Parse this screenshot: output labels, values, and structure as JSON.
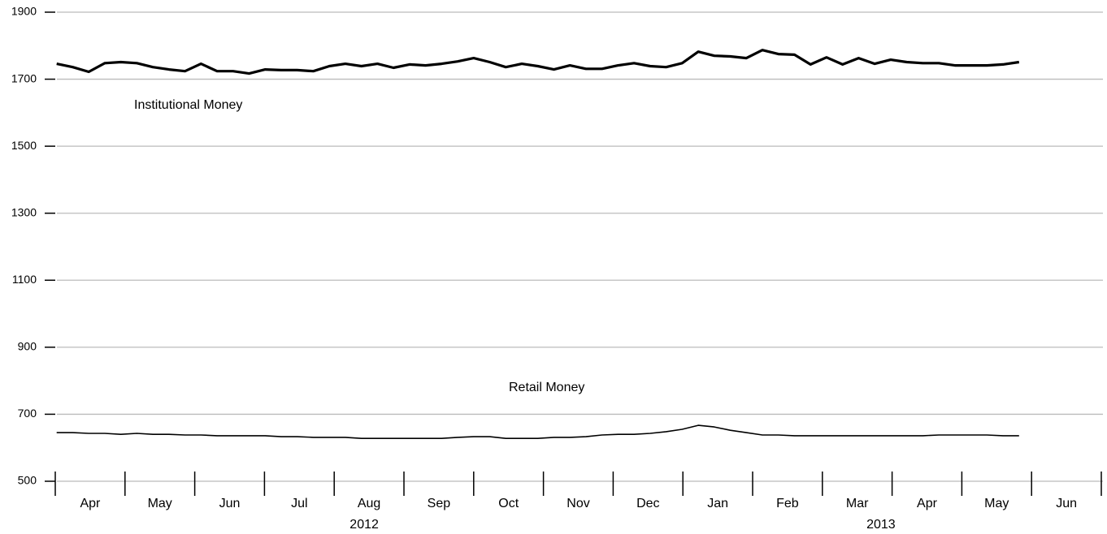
{
  "chart_data": {
    "type": "line",
    "annotations": [
      "Institutional Money",
      "Retail Money"
    ],
    "x": [
      0.02,
      0.25,
      0.48,
      0.71,
      0.94,
      1.17,
      1.4,
      1.63,
      1.86,
      2.09,
      2.32,
      2.55,
      2.78,
      3.01,
      3.24,
      3.47,
      3.7,
      3.93,
      4.16,
      4.39,
      4.62,
      4.85,
      5.08,
      5.31,
      5.54,
      5.77,
      6.0,
      6.23,
      6.46,
      6.69,
      6.92,
      7.15,
      7.38,
      7.61,
      7.84,
      8.07,
      8.3,
      8.53,
      8.76,
      8.99,
      9.22,
      9.45,
      9.68,
      9.91,
      10.14,
      10.37,
      10.6,
      10.83,
      11.06,
      11.29,
      11.52,
      11.75,
      11.98,
      12.21,
      12.44,
      12.67,
      12.9,
      13.13,
      13.36,
      13.59,
      13.82
    ],
    "series": [
      {
        "name": "Institutional Money",
        "color": "#000000",
        "width": 3.2,
        "values": [
          1746,
          1736,
          1722,
          1748,
          1751,
          1748,
          1736,
          1729,
          1724,
          1746,
          1724,
          1724,
          1717,
          1729,
          1727,
          1727,
          1724,
          1739,
          1746,
          1739,
          1746,
          1734,
          1744,
          1741,
          1746,
          1753,
          1763,
          1751,
          1736,
          1746,
          1739,
          1729,
          1741,
          1731,
          1731,
          1741,
          1748,
          1739,
          1736,
          1748,
          1782,
          1770,
          1768,
          1763,
          1787,
          1775,
          1773,
          1744,
          1765,
          1744,
          1763,
          1746,
          1758,
          1751,
          1748,
          1748,
          1741,
          1741,
          1741,
          1744,
          1751
        ]
      },
      {
        "name": "Retail Money",
        "color": "#000000",
        "width": 1.6,
        "values": [
          645,
          645,
          643,
          643,
          640,
          643,
          640,
          640,
          638,
          638,
          636,
          636,
          636,
          636,
          633,
          633,
          631,
          631,
          631,
          628,
          628,
          628,
          628,
          628,
          628,
          631,
          633,
          633,
          628,
          628,
          628,
          631,
          631,
          633,
          638,
          640,
          640,
          643,
          648,
          655,
          667,
          662,
          652,
          645,
          638,
          638,
          636,
          636,
          636,
          636,
          636,
          636,
          636,
          636,
          636,
          638,
          638,
          638,
          638,
          636,
          636
        ]
      }
    ],
    "xlim": [
      0,
      15
    ],
    "xmajorticks": [
      0,
      1,
      2,
      3,
      4,
      5,
      6,
      7,
      8,
      9,
      10,
      11,
      12,
      13,
      14,
      15
    ],
    "xticks": [
      {
        "value": 0.5,
        "label": "Apr"
      },
      {
        "value": 1.5,
        "label": "May"
      },
      {
        "value": 2.5,
        "label": "Jun"
      },
      {
        "value": 3.5,
        "label": "Jul"
      },
      {
        "value": 4.5,
        "label": "Aug"
      },
      {
        "value": 5.5,
        "label": "Sep"
      },
      {
        "value": 6.5,
        "label": "Oct"
      },
      {
        "value": 7.5,
        "label": "Nov"
      },
      {
        "value": 8.5,
        "label": "Dec"
      },
      {
        "value": 9.5,
        "label": "Jan"
      },
      {
        "value": 10.5,
        "label": "Feb"
      },
      {
        "value": 11.5,
        "label": "Mar"
      },
      {
        "value": 12.5,
        "label": "Apr"
      },
      {
        "value": 13.5,
        "label": "May"
      },
      {
        "value": 14.5,
        "label": "Jun"
      }
    ],
    "year_labels": [
      {
        "value": 4.43,
        "label": "2012"
      },
      {
        "value": 11.84,
        "label": "2013"
      }
    ],
    "ylim": [
      500,
      1900
    ],
    "yticks": [
      500,
      700,
      900,
      1100,
      1300,
      1500,
      1700,
      1900
    ],
    "grid": true
  }
}
